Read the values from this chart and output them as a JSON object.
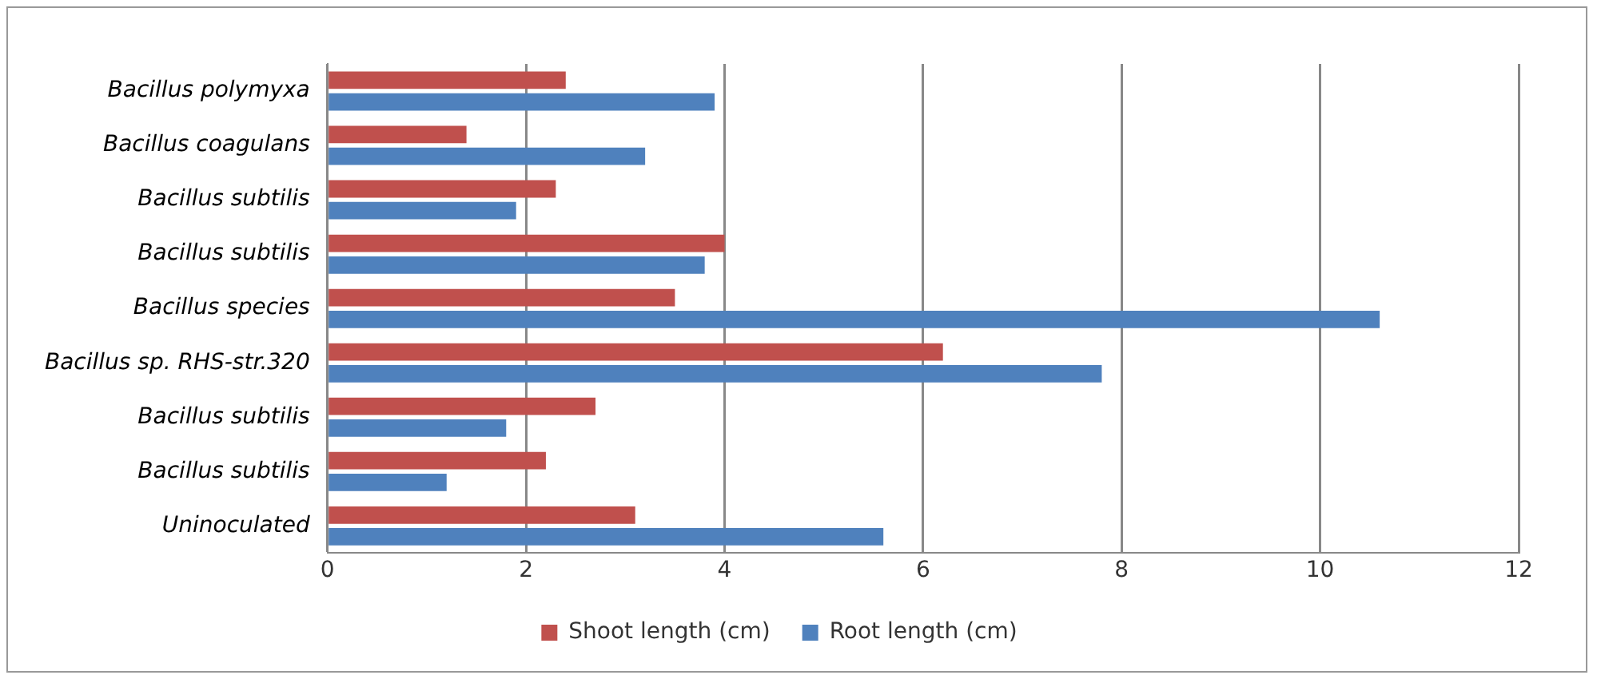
{
  "chart_data": {
    "type": "bar",
    "orientation": "horizontal",
    "categories": [
      "Bacillus polymyxa",
      "Bacillus coagulans",
      "Bacillus subtilis",
      "Bacillus subtilis",
      "Bacillus species",
      "Bacillus sp. RHS-str.320",
      "Bacillus subtilis",
      "Bacillus subtilis",
      "Uninoculated"
    ],
    "series": [
      {
        "name": "Shoot length (cm)",
        "color": "#c0504d",
        "values": [
          2.4,
          1.4,
          2.3,
          4.0,
          3.5,
          6.2,
          2.7,
          2.2,
          3.1
        ]
      },
      {
        "name": "Root length (cm)",
        "color": "#4f81bd",
        "values": [
          3.9,
          3.2,
          1.9,
          3.8,
          10.6,
          7.8,
          1.8,
          1.2,
          5.6
        ]
      }
    ],
    "xlim": [
      0,
      12
    ],
    "xticks": [
      0,
      2,
      4,
      6,
      8,
      10,
      12
    ],
    "grid": "x",
    "legend": "bottom"
  }
}
